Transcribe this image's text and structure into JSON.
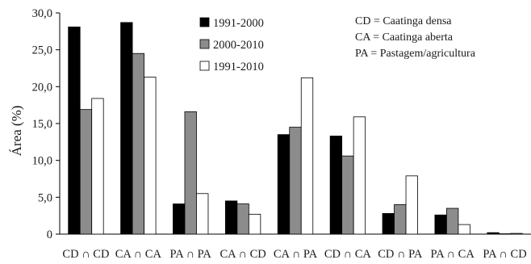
{
  "chart_data": {
    "type": "bar",
    "title": "",
    "xlabel": "",
    "ylabel": "Área (%)",
    "ylim": [
      0,
      30
    ],
    "yticks": [
      "0",
      "5,0",
      "10,0",
      "15,0",
      "20,0",
      "25,0",
      "30,0"
    ],
    "ytick_values": [
      0,
      5,
      10,
      15,
      20,
      25,
      30
    ],
    "categories": [
      "CD ∩ CD",
      "CA ∩ CA",
      "PA ∩ PA",
      "CA ∩ CD",
      "CA ∩ PA",
      "CD ∩ CA",
      "CD ∩ PA",
      "PA ∩ CA",
      "PA ∩ CD"
    ],
    "series": [
      {
        "name": "1991-2000",
        "color": "#000000",
        "values": [
          28.1,
          28.7,
          4.1,
          4.5,
          13.5,
          13.3,
          2.8,
          2.6,
          0.2
        ]
      },
      {
        "name": "2000-2010",
        "color": "#8c8c8c",
        "values": [
          16.9,
          24.5,
          16.6,
          4.1,
          14.5,
          10.6,
          4.0,
          3.5,
          0.05
        ]
      },
      {
        "name": "1991-2010",
        "color": "#ffffff",
        "values": [
          18.4,
          21.3,
          5.5,
          2.7,
          21.2,
          15.9,
          7.9,
          1.3,
          0.1
        ]
      }
    ],
    "grid": false,
    "legend": {
      "position": "top-center"
    },
    "notes": [
      "CD = Caatinga densa",
      "CA = Caatinga aberta",
      "PA = Pastagem/agricultura"
    ]
  }
}
